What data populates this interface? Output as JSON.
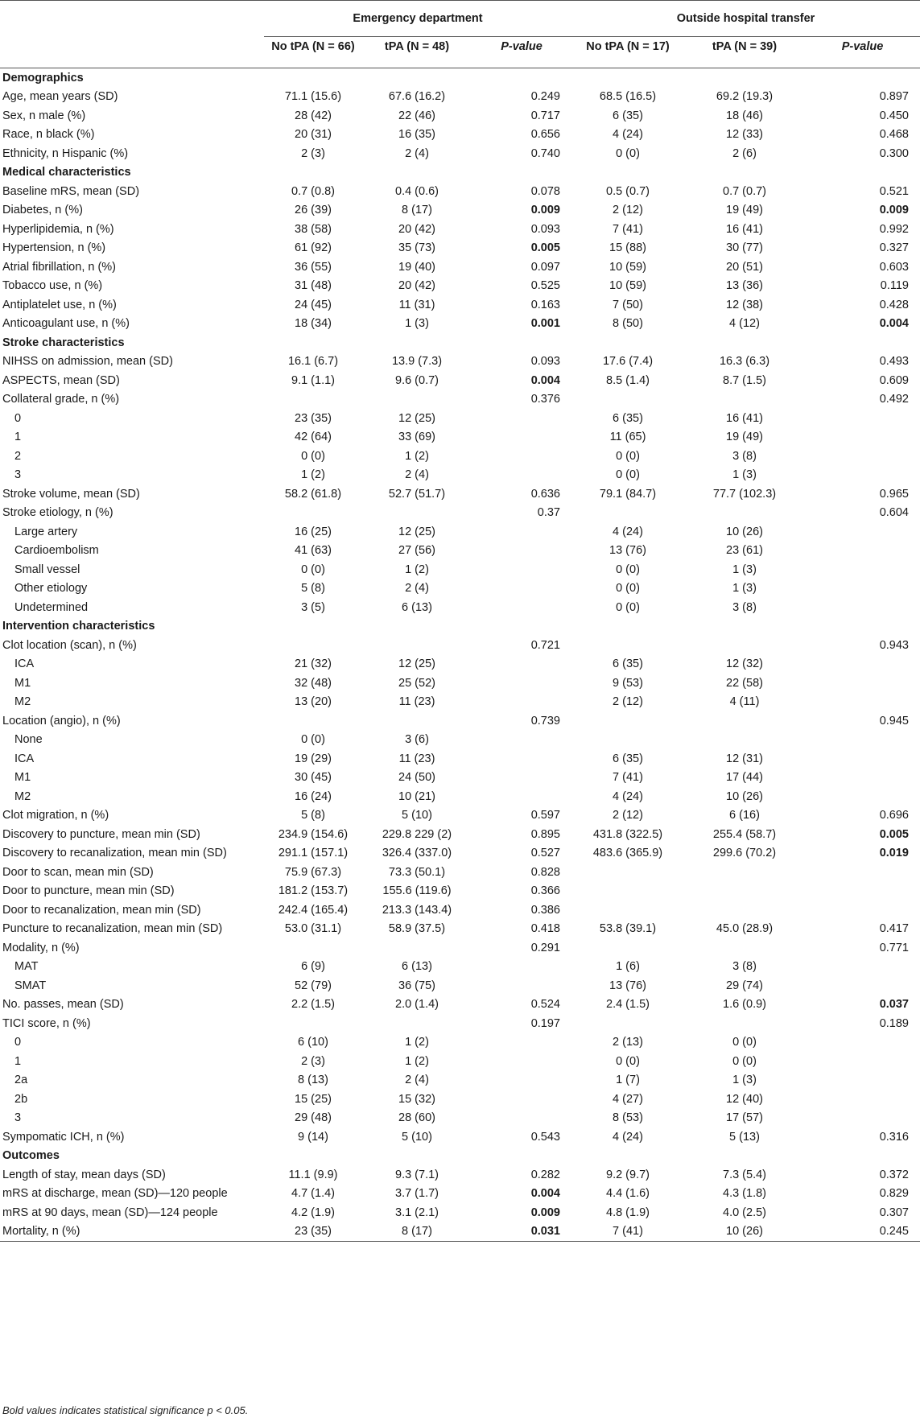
{
  "header": {
    "group_ed": "Emergency department",
    "group_oht": "Outside hospital transfer",
    "columns": [
      "No tPA (N = 66)",
      "tPA (N = 48)",
      "P-value",
      "No tPA (N = 17)",
      "tPA (N = 39)",
      "P-value"
    ]
  },
  "rows": [
    {
      "type": "section",
      "label": "Demographics"
    },
    {
      "type": "data",
      "label": "Age, mean years (SD)",
      "ed_no": "71.1 (15.6)",
      "ed_tpa": "67.6 (16.2)",
      "ed_p": "0.249",
      "oh_no": "68.5 (16.5)",
      "oh_tpa": "69.2 (19.3)",
      "oh_p": "0.897"
    },
    {
      "type": "data",
      "label": "Sex, n male (%)",
      "ed_no": "28 (42)",
      "ed_tpa": "22 (46)",
      "ed_p": "0.717",
      "oh_no": "6 (35)",
      "oh_tpa": "18 (46)",
      "oh_p": "0.450"
    },
    {
      "type": "data",
      "label": "Race, n black (%)",
      "ed_no": "20 (31)",
      "ed_tpa": "16 (35)",
      "ed_p": "0.656",
      "oh_no": "4 (24)",
      "oh_tpa": "12 (33)",
      "oh_p": "0.468"
    },
    {
      "type": "data",
      "label": "Ethnicity, n Hispanic (%)",
      "ed_no": "2 (3)",
      "ed_tpa": "2 (4)",
      "ed_p": "0.740",
      "oh_no": "0 (0)",
      "oh_tpa": "2 (6)",
      "oh_p": "0.300"
    },
    {
      "type": "section",
      "label": "Medical characteristics"
    },
    {
      "type": "data",
      "label": "Baseline mRS, mean (SD)",
      "ed_no": "0.7 (0.8)",
      "ed_tpa": "0.4 (0.6)",
      "ed_p": "0.078",
      "oh_no": "0.5 (0.7)",
      "oh_tpa": "0.7 (0.7)",
      "oh_p": "0.521"
    },
    {
      "type": "data",
      "label": "Diabetes, n (%)",
      "ed_no": "26 (39)",
      "ed_tpa": "8 (17)",
      "ed_p": "0.009",
      "ed_sig": true,
      "oh_no": "2 (12)",
      "oh_tpa": "19 (49)",
      "oh_p": "0.009",
      "oh_sig": true
    },
    {
      "type": "data",
      "label": "Hyperlipidemia, n (%)",
      "ed_no": "38 (58)",
      "ed_tpa": "20 (42)",
      "ed_p": "0.093",
      "oh_no": "7 (41)",
      "oh_tpa": "16 (41)",
      "oh_p": "0.992"
    },
    {
      "type": "data",
      "label": "Hypertension, n (%)",
      "ed_no": "61 (92)",
      "ed_tpa": "35 (73)",
      "ed_p": "0.005",
      "ed_sig": true,
      "oh_no": "15 (88)",
      "oh_tpa": "30 (77)",
      "oh_p": "0.327"
    },
    {
      "type": "data",
      "label": "Atrial fibrillation, n (%)",
      "ed_no": "36 (55)",
      "ed_tpa": "19 (40)",
      "ed_p": "0.097",
      "oh_no": "10 (59)",
      "oh_tpa": "20 (51)",
      "oh_p": "0.603"
    },
    {
      "type": "data",
      "label": "Tobacco use, n (%)",
      "ed_no": "31 (48)",
      "ed_tpa": "20 (42)",
      "ed_p": "0.525",
      "oh_no": "10 (59)",
      "oh_tpa": "13 (36)",
      "oh_p": "0.119"
    },
    {
      "type": "data",
      "label": "Antiplatelet use, n (%)",
      "ed_no": "24 (45)",
      "ed_tpa": "11 (31)",
      "ed_p": "0.163",
      "oh_no": "7 (50)",
      "oh_tpa": "12 (38)",
      "oh_p": "0.428"
    },
    {
      "type": "data",
      "label": "Anticoagulant use, n (%)",
      "ed_no": "18 (34)",
      "ed_tpa": "1 (3)",
      "ed_p": "0.001",
      "ed_sig": true,
      "oh_no": "8 (50)",
      "oh_tpa": "4 (12)",
      "oh_p": "0.004",
      "oh_sig": true
    },
    {
      "type": "section",
      "label": "Stroke characteristics"
    },
    {
      "type": "data",
      "label": "NIHSS on admission, mean (SD)",
      "ed_no": "16.1 (6.7)",
      "ed_tpa": "13.9 (7.3)",
      "ed_p": "0.093",
      "oh_no": "17.6 (7.4)",
      "oh_tpa": "16.3 (6.3)",
      "oh_p": "0.493"
    },
    {
      "type": "data",
      "label": "ASPECTS, mean (SD)",
      "ed_no": "9.1 (1.1)",
      "ed_tpa": "9.6 (0.7)",
      "ed_p": "0.004",
      "ed_sig": true,
      "oh_no": "8.5 (1.4)",
      "oh_tpa": "8.7 (1.5)",
      "oh_p": "0.609"
    },
    {
      "type": "data",
      "label": "Collateral grade, n (%)",
      "ed_p": "0.376",
      "oh_p": "0.492"
    },
    {
      "type": "sub",
      "label": "0",
      "ed_no": "23 (35)",
      "ed_tpa": "12 (25)",
      "oh_no": "6 (35)",
      "oh_tpa": "16 (41)"
    },
    {
      "type": "sub",
      "label": "1",
      "ed_no": "42 (64)",
      "ed_tpa": "33 (69)",
      "oh_no": "11 (65)",
      "oh_tpa": "19 (49)"
    },
    {
      "type": "sub",
      "label": "2",
      "ed_no": "0 (0)",
      "ed_tpa": "1 (2)",
      "oh_no": "0 (0)",
      "oh_tpa": "3 (8)"
    },
    {
      "type": "sub",
      "label": "3",
      "ed_no": "1 (2)",
      "ed_tpa": "2 (4)",
      "oh_no": "0 (0)",
      "oh_tpa": "1 (3)"
    },
    {
      "type": "data",
      "label": "Stroke volume, mean (SD)",
      "ed_no": "58.2 (61.8)",
      "ed_tpa": "52.7 (51.7)",
      "ed_p": "0.636",
      "oh_no": "79.1 (84.7)",
      "oh_tpa": "77.7 (102.3)",
      "oh_p": "0.965"
    },
    {
      "type": "data",
      "label": "Stroke etiology, n (%)",
      "ed_p": "0.37",
      "oh_p": "0.604"
    },
    {
      "type": "sub",
      "label": "Large artery",
      "ed_no": "16 (25)",
      "ed_tpa": "12 (25)",
      "oh_no": "4 (24)",
      "oh_tpa": "10 (26)"
    },
    {
      "type": "sub",
      "label": "Cardioembolism",
      "ed_no": "41 (63)",
      "ed_tpa": "27 (56)",
      "oh_no": "13 (76)",
      "oh_tpa": "23 (61)"
    },
    {
      "type": "sub",
      "label": "Small vessel",
      "ed_no": "0 (0)",
      "ed_tpa": "1 (2)",
      "oh_no": "0 (0)",
      "oh_tpa": "1 (3)"
    },
    {
      "type": "sub",
      "label": "Other etiology",
      "ed_no": "5 (8)",
      "ed_tpa": "2 (4)",
      "oh_no": "0 (0)",
      "oh_tpa": "1 (3)"
    },
    {
      "type": "sub",
      "label": "Undetermined",
      "ed_no": "3 (5)",
      "ed_tpa": "6 (13)",
      "oh_no": "0 (0)",
      "oh_tpa": "3 (8)"
    },
    {
      "type": "section",
      "label": "Intervention characteristics"
    },
    {
      "type": "data",
      "label": "Clot location (scan), n (%)",
      "ed_p": "0.721",
      "oh_p": "0.943"
    },
    {
      "type": "sub",
      "label": "ICA",
      "ed_no": "21 (32)",
      "ed_tpa": "12 (25)",
      "oh_no": "6 (35)",
      "oh_tpa": "12 (32)"
    },
    {
      "type": "sub",
      "label": "M1",
      "ed_no": "32 (48)",
      "ed_tpa": "25 (52)",
      "oh_no": "9 (53)",
      "oh_tpa": "22 (58)"
    },
    {
      "type": "sub",
      "label": "M2",
      "ed_no": "13 (20)",
      "ed_tpa": "11 (23)",
      "oh_no": "2 (12)",
      "oh_tpa": "4 (11)"
    },
    {
      "type": "data",
      "label": "Location (angio), n (%)",
      "ed_p": "0.739",
      "oh_p": "0.945"
    },
    {
      "type": "sub",
      "label": "None",
      "ed_no": "0 (0)",
      "ed_tpa": "3 (6)"
    },
    {
      "type": "sub",
      "label": "ICA",
      "ed_no": "19 (29)",
      "ed_tpa": "11 (23)",
      "oh_no": "6 (35)",
      "oh_tpa": "12 (31)"
    },
    {
      "type": "sub",
      "label": "M1",
      "ed_no": "30 (45)",
      "ed_tpa": "24 (50)",
      "oh_no": "7 (41)",
      "oh_tpa": "17 (44)"
    },
    {
      "type": "sub",
      "label": "M2",
      "ed_no": "16 (24)",
      "ed_tpa": "10 (21)",
      "oh_no": "4 (24)",
      "oh_tpa": "10 (26)"
    },
    {
      "type": "data",
      "label": "Clot migration, n (%)",
      "ed_no": "5 (8)",
      "ed_tpa": "5 (10)",
      "ed_p": "0.597",
      "oh_no": "2 (12)",
      "oh_tpa": "6 (16)",
      "oh_p": "0.696"
    },
    {
      "type": "data",
      "label": "Discovery to puncture, mean min (SD)",
      "ed_no": "234.9 (154.6)",
      "ed_tpa": "229.8 229 (2)",
      "ed_p": "0.895",
      "oh_no": "431.8 (322.5)",
      "oh_tpa": "255.4 (58.7)",
      "oh_p": "0.005",
      "oh_sig": true
    },
    {
      "type": "data",
      "label": "Discovery to recanalization, mean min (SD)",
      "ed_no": "291.1 (157.1)",
      "ed_tpa": "326.4 (337.0)",
      "ed_p": "0.527",
      "oh_no": "483.6 (365.9)",
      "oh_tpa": "299.6 (70.2)",
      "oh_p": "0.019",
      "oh_sig": true
    },
    {
      "type": "data",
      "label": "Door to scan, mean min (SD)",
      "ed_no": "75.9 (67.3)",
      "ed_tpa": "73.3 (50.1)",
      "ed_p": "0.828"
    },
    {
      "type": "data",
      "label": "Door to puncture, mean min (SD)",
      "ed_no": "181.2 (153.7)",
      "ed_tpa": "155.6 (119.6)",
      "ed_p": "0.366"
    },
    {
      "type": "data",
      "label": "Door to recanalization, mean min (SD)",
      "ed_no": "242.4 (165.4)",
      "ed_tpa": "213.3 (143.4)",
      "ed_p": "0.386"
    },
    {
      "type": "data",
      "label": "Puncture to recanalization, mean min (SD)",
      "ed_no": "53.0 (31.1)",
      "ed_tpa": "58.9 (37.5)",
      "ed_p": "0.418",
      "oh_no": "53.8 (39.1)",
      "oh_tpa": "45.0 (28.9)",
      "oh_p": "0.417"
    },
    {
      "type": "data",
      "label": "Modality, n (%)",
      "ed_p": "0.291",
      "oh_p": "0.771"
    },
    {
      "type": "sub",
      "label": "MAT",
      "ed_no": "6 (9)",
      "ed_tpa": "6 (13)",
      "oh_no": "1 (6)",
      "oh_tpa": "3 (8)"
    },
    {
      "type": "sub",
      "label": "SMAT",
      "ed_no": "52 (79)",
      "ed_tpa": "36 (75)",
      "oh_no": "13 (76)",
      "oh_tpa": "29 (74)"
    },
    {
      "type": "data",
      "label": "No. passes, mean (SD)",
      "ed_no": "2.2 (1.5)",
      "ed_tpa": "2.0 (1.4)",
      "ed_p": "0.524",
      "oh_no": "2.4 (1.5)",
      "oh_tpa": "1.6 (0.9)",
      "oh_p": "0.037",
      "oh_sig": true
    },
    {
      "type": "data",
      "label": "TICI score, n (%)",
      "ed_p": "0.197",
      "oh_p": "0.189"
    },
    {
      "type": "sub",
      "label": "0",
      "ed_no": "6 (10)",
      "ed_tpa": "1 (2)",
      "oh_no": "2 (13)",
      "oh_tpa": "0 (0)"
    },
    {
      "type": "sub",
      "label": "1",
      "ed_no": "2 (3)",
      "ed_tpa": "1 (2)",
      "oh_no": "0 (0)",
      "oh_tpa": "0 (0)"
    },
    {
      "type": "sub",
      "label": "2a",
      "ed_no": "8 (13)",
      "ed_tpa": "2 (4)",
      "oh_no": "1 (7)",
      "oh_tpa": "1 (3)"
    },
    {
      "type": "sub",
      "label": "2b",
      "ed_no": "15 (25)",
      "ed_tpa": "15 (32)",
      "oh_no": "4 (27)",
      "oh_tpa": "12 (40)"
    },
    {
      "type": "sub",
      "label": "3",
      "ed_no": "29 (48)",
      "ed_tpa": "28 (60)",
      "oh_no": "8 (53)",
      "oh_tpa": "17 (57)"
    },
    {
      "type": "data",
      "label": "Sympomatic ICH, n (%)",
      "ed_no": "9 (14)",
      "ed_tpa": "5 (10)",
      "ed_p": "0.543",
      "oh_no": "4 (24)",
      "oh_tpa": "5 (13)",
      "oh_p": "0.316"
    },
    {
      "type": "section",
      "label": "Outcomes"
    },
    {
      "type": "data",
      "label": "Length of stay, mean days (SD)",
      "ed_no": "11.1 (9.9)",
      "ed_tpa": "9.3 (7.1)",
      "ed_p": "0.282",
      "oh_no": "9.2 (9.7)",
      "oh_tpa": "7.3 (5.4)",
      "oh_p": "0.372"
    },
    {
      "type": "data",
      "label": "mRS at discharge, mean (SD)—120 people",
      "ed_no": "4.7 (1.4)",
      "ed_tpa": "3.7 (1.7)",
      "ed_p": "0.004",
      "ed_sig": true,
      "oh_no": "4.4 (1.6)",
      "oh_tpa": "4.3 (1.8)",
      "oh_p": "0.829"
    },
    {
      "type": "data",
      "label": "mRS at 90 days, mean (SD)—124 people",
      "ed_no": "4.2 (1.9)",
      "ed_tpa": "3.1 (2.1)",
      "ed_p": "0.009",
      "ed_sig": true,
      "oh_no": "4.8 (1.9)",
      "oh_tpa": "4.0 (2.5)",
      "oh_p": "0.307"
    },
    {
      "type": "data",
      "label": "Mortality, n (%)",
      "ed_no": "23 (35)",
      "ed_tpa": "8 (17)",
      "ed_p": "0.031",
      "ed_sig": true,
      "oh_no": "7 (41)",
      "oh_tpa": "10 (26)",
      "oh_p": "0.245"
    }
  ],
  "footnote": "Bold values indicates statistical significance p < 0.05."
}
